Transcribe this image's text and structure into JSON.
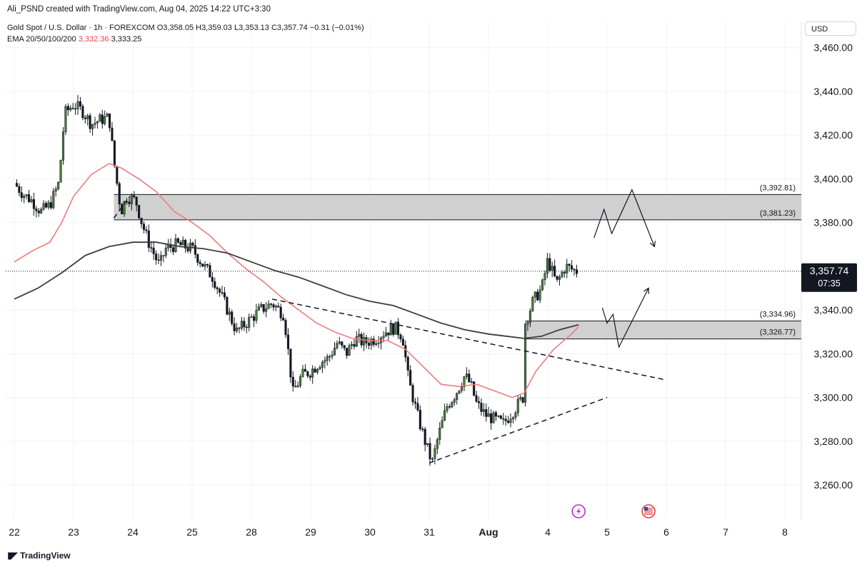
{
  "header": {
    "credit": "Ali_PSND created with TradingView.com, Aug 04, 2025 14:22 UTC+3:30",
    "symbol": "Gold Spot / U.S. Dollar · 1h · FOREXCOM",
    "ohlc": {
      "open": "O3,358.05",
      "high": "H3,359.03",
      "low": "L3,353.13",
      "close": "C3,357.74",
      "change": "−0.31 (−0.01%)"
    },
    "ema_label": "EMA 20/50/100/200",
    "ema_value_1": "3,332.36",
    "ema_value_2": "3,333.25"
  },
  "price_axis": {
    "currency": "USD"
  },
  "brand": {
    "name": "TradingView"
  },
  "colors": {
    "up": "#26a69a",
    "down": "#131722",
    "ema_fast": "#f07b7d",
    "ema_slow": "#3d3d3d",
    "zone": "#d0d0d0",
    "price_tag": "#131722"
  },
  "chart_data": {
    "type": "candlestick",
    "timeframe": "1h",
    "y_ticks": [
      "3,460.00",
      "3,440.00",
      "3,420.00",
      "3,400.00",
      "3,380.00",
      "3,340.00",
      "3,320.00",
      "3,300.00",
      "3,280.00",
      "3,260.00"
    ],
    "y_tick_values": [
      3460,
      3440,
      3420,
      3400,
      3380,
      3340,
      3320,
      3300,
      3280,
      3260
    ],
    "ylim": [
      3244,
      3472
    ],
    "x_labels": [
      "22",
      "23",
      "24",
      "25",
      "28",
      "29",
      "30",
      "31",
      "Aug",
      "4",
      "5",
      "6",
      "7",
      "8"
    ],
    "x_label_slots": [
      0,
      1,
      2,
      3,
      4,
      5,
      6,
      7,
      8,
      9,
      10,
      11,
      12,
      13
    ],
    "last_price": "3,357.74",
    "last_price_value": 3357.74,
    "countdown": "07:35",
    "zones": [
      {
        "top": 3392.81,
        "bottom": 3381.23,
        "top_label": "(3,392.81)",
        "bottom_label": "(3,381.23)",
        "x_start": 1.68
      },
      {
        "top": 3334.96,
        "bottom": 3326.77,
        "top_label": "(3,334.96)",
        "bottom_label": "(3,326.77)",
        "x_start": 8.62
      }
    ],
    "close_path": [
      [
        0.0,
        3398
      ],
      [
        0.15,
        3393
      ],
      [
        0.3,
        3390
      ],
      [
        0.45,
        3385
      ],
      [
        0.6,
        3388
      ],
      [
        0.75,
        3398
      ],
      [
        0.85,
        3430
      ],
      [
        1.0,
        3434
      ],
      [
        1.15,
        3431
      ],
      [
        1.3,
        3425
      ],
      [
        1.45,
        3427
      ],
      [
        1.6,
        3428
      ],
      [
        1.68,
        3408
      ],
      [
        1.8,
        3385
      ],
      [
        1.9,
        3392
      ],
      [
        2.05,
        3390
      ],
      [
        2.15,
        3380
      ],
      [
        2.25,
        3372
      ],
      [
        2.45,
        3360
      ],
      [
        2.55,
        3368
      ],
      [
        2.75,
        3370
      ],
      [
        3.0,
        3368
      ],
      [
        3.2,
        3360
      ],
      [
        3.35,
        3355
      ],
      [
        3.55,
        3343
      ],
      [
        3.75,
        3330
      ],
      [
        3.95,
        3335
      ],
      [
        4.15,
        3340
      ],
      [
        4.35,
        3343
      ],
      [
        4.55,
        3338
      ],
      [
        4.7,
        3302
      ],
      [
        4.85,
        3310
      ],
      [
        5.0,
        3312
      ],
      [
        5.15,
        3316
      ],
      [
        5.3,
        3318
      ],
      [
        5.45,
        3325
      ],
      [
        5.6,
        3320
      ],
      [
        5.75,
        3327
      ],
      [
        5.9,
        3325
      ],
      [
        6.1,
        3327
      ],
      [
        6.25,
        3330
      ],
      [
        6.42,
        3332
      ],
      [
        6.55,
        3328
      ],
      [
        6.65,
        3308
      ],
      [
        6.8,
        3292
      ],
      [
        6.95,
        3278
      ],
      [
        7.05,
        3270
      ],
      [
        7.15,
        3282
      ],
      [
        7.3,
        3296
      ],
      [
        7.45,
        3302
      ],
      [
        7.6,
        3310
      ],
      [
        7.7,
        3306
      ],
      [
        7.8,
        3297
      ],
      [
        7.95,
        3292
      ],
      [
        8.1,
        3290
      ],
      [
        8.25,
        3288
      ],
      [
        8.45,
        3295
      ],
      [
        8.58,
        3300
      ],
      [
        8.62,
        3334
      ],
      [
        8.75,
        3344
      ],
      [
        8.9,
        3350
      ],
      [
        9.0,
        3363
      ],
      [
        9.15,
        3352
      ],
      [
        9.3,
        3360
      ],
      [
        9.45,
        3358
      ],
      [
        9.52,
        3357.74
      ]
    ],
    "ema_fast": [
      [
        0.0,
        3362
      ],
      [
        0.3,
        3367
      ],
      [
        0.6,
        3371
      ],
      [
        0.8,
        3380
      ],
      [
        1.0,
        3392
      ],
      [
        1.3,
        3402
      ],
      [
        1.6,
        3407
      ],
      [
        1.8,
        3405
      ],
      [
        2.1,
        3400
      ],
      [
        2.4,
        3394
      ],
      [
        2.7,
        3385
      ],
      [
        3.0,
        3380
      ],
      [
        3.3,
        3374
      ],
      [
        3.6,
        3366
      ],
      [
        3.9,
        3359
      ],
      [
        4.2,
        3353
      ],
      [
        4.5,
        3346
      ],
      [
        4.8,
        3340
      ],
      [
        5.1,
        3334
      ],
      [
        5.4,
        3330
      ],
      [
        5.7,
        3327
      ],
      [
        6.0,
        3326
      ],
      [
        6.3,
        3326
      ],
      [
        6.6,
        3322
      ],
      [
        6.9,
        3314
      ],
      [
        7.2,
        3306
      ],
      [
        7.5,
        3305
      ],
      [
        7.8,
        3306
      ],
      [
        8.1,
        3303
      ],
      [
        8.4,
        3300
      ],
      [
        8.6,
        3302
      ],
      [
        8.8,
        3312
      ],
      [
        9.1,
        3322
      ],
      [
        9.4,
        3329
      ],
      [
        9.52,
        3332.36
      ]
    ],
    "ema_slow": [
      [
        0.0,
        3345
      ],
      [
        0.4,
        3350
      ],
      [
        0.8,
        3357
      ],
      [
        1.2,
        3365
      ],
      [
        1.6,
        3369
      ],
      [
        2.0,
        3371
      ],
      [
        2.4,
        3371
      ],
      [
        2.8,
        3369
      ],
      [
        3.2,
        3368
      ],
      [
        3.6,
        3366
      ],
      [
        4.0,
        3362
      ],
      [
        4.4,
        3358
      ],
      [
        4.8,
        3355
      ],
      [
        5.2,
        3351
      ],
      [
        5.6,
        3347
      ],
      [
        6.0,
        3344
      ],
      [
        6.4,
        3342
      ],
      [
        6.8,
        3338
      ],
      [
        7.2,
        3334
      ],
      [
        7.6,
        3331
      ],
      [
        8.0,
        3329
      ],
      [
        8.3,
        3328
      ],
      [
        8.6,
        3327
      ],
      [
        8.9,
        3328
      ],
      [
        9.2,
        3331
      ],
      [
        9.52,
        3333.25
      ]
    ],
    "trendlines": [
      {
        "style": "dashed",
        "points": [
          [
            4.35,
            3345
          ],
          [
            11.0,
            3308
          ]
        ]
      },
      {
        "style": "dashed",
        "points": [
          [
            7.0,
            3270
          ],
          [
            10.0,
            3300
          ]
        ]
      },
      {
        "style": "dashed",
        "points": [
          [
            1.68,
            3382
          ],
          [
            1.95,
            3392
          ]
        ]
      }
    ],
    "projections": [
      {
        "points": [
          [
            9.78,
            3373
          ],
          [
            9.95,
            3386
          ],
          [
            10.08,
            3375
          ],
          [
            10.42,
            3395
          ],
          [
            10.8,
            3369
          ]
        ],
        "arrow": true
      },
      {
        "points": [
          [
            9.92,
            3341
          ],
          [
            10.0,
            3334
          ],
          [
            10.1,
            3338
          ],
          [
            10.2,
            3323
          ],
          [
            10.7,
            3350
          ]
        ],
        "arrow": true
      }
    ],
    "event_icons": [
      "lightning-event-icon",
      "us-flag-event-icon"
    ]
  }
}
